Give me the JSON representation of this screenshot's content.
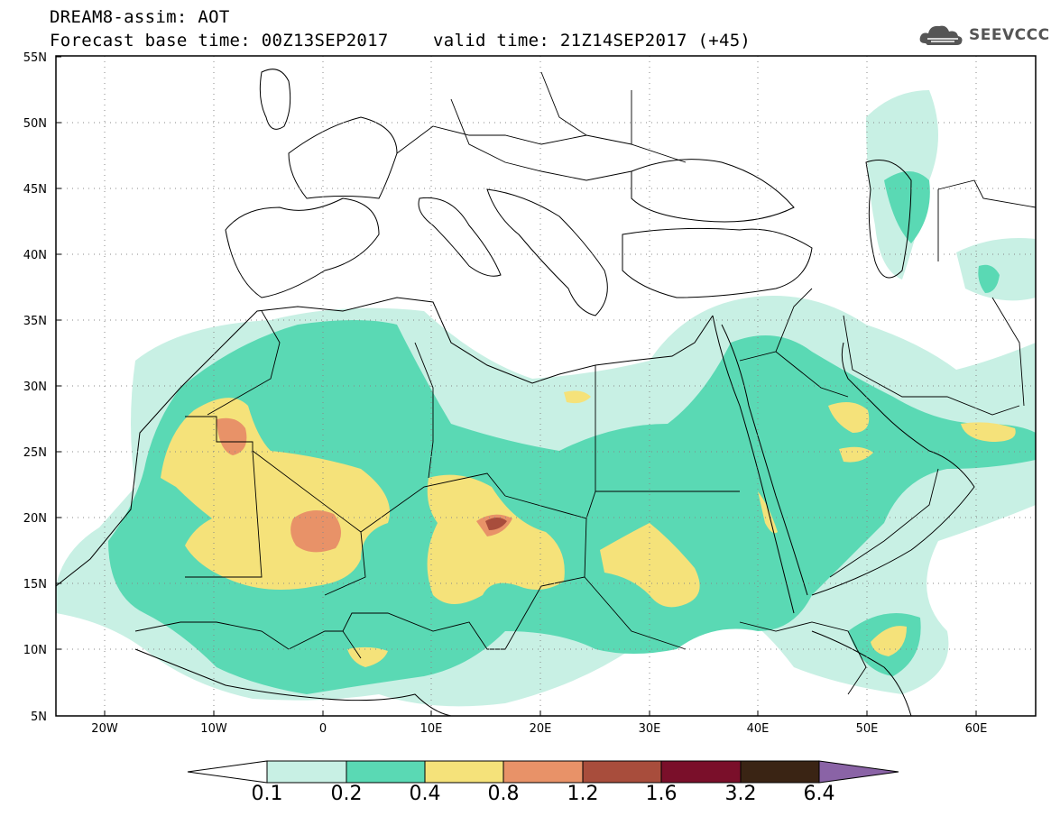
{
  "header": {
    "title": "DREAM8-assim: AOT",
    "base_time": "Forecast base time: 00Z13SEP2017",
    "valid_time": "valid time: 21Z14SEP2017 (+45)",
    "logo_text": "SEEVCCC"
  },
  "axes": {
    "lat_ticks": [
      "5N",
      "10N",
      "15N",
      "20N",
      "25N",
      "30N",
      "35N",
      "40N",
      "45N",
      "50N",
      "55N"
    ],
    "lon_ticks": [
      "20W",
      "10W",
      "0",
      "10E",
      "20E",
      "30E",
      "40E",
      "50E",
      "60E"
    ]
  },
  "colorbar": {
    "labels": [
      "0.1",
      "0.2",
      "0.4",
      "0.8",
      "1.2",
      "1.6",
      "3.2",
      "6.4"
    ],
    "colors": [
      "#c8f0e4",
      "#5ad9b4",
      "#f5e27a",
      "#e89268",
      "#a84d3c",
      "#7a0f2a",
      "#3a2414",
      "#8a63a6"
    ]
  }
}
